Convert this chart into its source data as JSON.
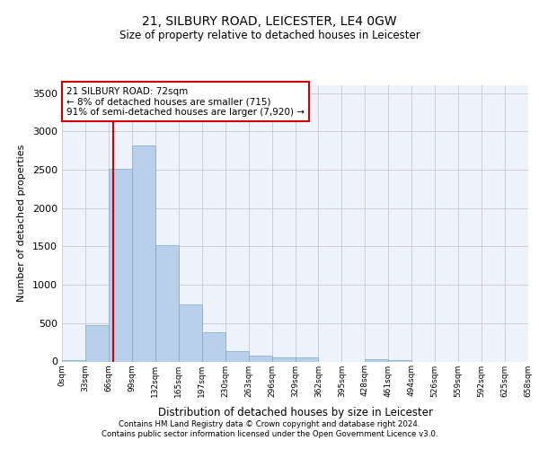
{
  "title": "21, SILBURY ROAD, LEICESTER, LE4 0GW",
  "subtitle": "Size of property relative to detached houses in Leicester",
  "xlabel": "Distribution of detached houses by size in Leicester",
  "ylabel": "Number of detached properties",
  "bar_color": "#b8d0ea",
  "bar_edge_color": "#7aaad0",
  "bin_labels": [
    "0sqm",
    "33sqm",
    "66sqm",
    "99sqm",
    "132sqm",
    "165sqm",
    "197sqm",
    "230sqm",
    "263sqm",
    "296sqm",
    "329sqm",
    "362sqm",
    "395sqm",
    "428sqm",
    "461sqm",
    "494sqm",
    "526sqm",
    "559sqm",
    "592sqm",
    "625sqm",
    "658sqm"
  ],
  "bar_heights": [
    20,
    480,
    2510,
    2820,
    1520,
    740,
    385,
    140,
    75,
    55,
    55,
    0,
    0,
    35,
    20,
    0,
    0,
    0,
    0,
    0
  ],
  "ylim": [
    0,
    3600
  ],
  "yticks": [
    0,
    500,
    1000,
    1500,
    2000,
    2500,
    3000,
    3500
  ],
  "property_line_x": 2.18,
  "annotation_text": "21 SILBURY ROAD: 72sqm\n← 8% of detached houses are smaller (715)\n91% of semi-detached houses are larger (7,920) →",
  "annotation_box_color": "#ffffff",
  "annotation_box_edge": "#cc0000",
  "vline_color": "#cc0000",
  "background_color": "#eef2fb",
  "grid_color": "#c8c8d8",
  "footer_line1": "Contains HM Land Registry data © Crown copyright and database right 2024.",
  "footer_line2": "Contains public sector information licensed under the Open Government Licence v3.0."
}
